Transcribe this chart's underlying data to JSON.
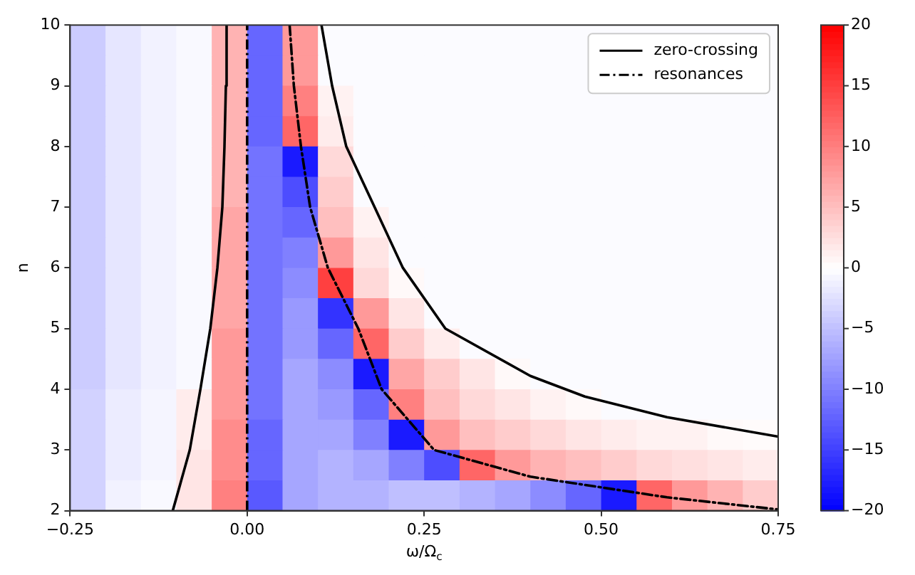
{
  "chart_data": {
    "type": "heatmap",
    "xlabel": "ω/Ω$_{c}$",
    "ylabel": "n",
    "x": [
      -0.225,
      -0.175,
      -0.125,
      -0.075,
      -0.025,
      0.025,
      0.075,
      0.125,
      0.175,
      0.225,
      0.275,
      0.325,
      0.375,
      0.425,
      0.475,
      0.525,
      0.575,
      0.625,
      0.675,
      0.725
    ],
    "y": [
      9.75,
      9.25,
      8.75,
      8.25,
      7.75,
      7.25,
      6.75,
      6.25,
      5.75,
      5.25,
      4.75,
      4.25,
      3.75,
      3.25,
      2.75,
      2.25
    ],
    "cells": [
      [
        -4,
        -2,
        -1,
        -0.5,
        6,
        -12,
        8,
        -0.3,
        -0.3,
        -0.3,
        -0.3,
        -0.3,
        -0.3,
        -0.3,
        -0.3,
        -0.3,
        -0.3,
        -0.3,
        -0.3,
        -0.3
      ],
      [
        -4,
        -2,
        -1,
        -0.5,
        6,
        -12,
        8,
        -0.3,
        -0.3,
        -0.3,
        -0.3,
        -0.3,
        -0.3,
        -0.3,
        -0.3,
        -0.3,
        -0.3,
        -0.3,
        -0.3,
        -0.3
      ],
      [
        -4,
        -2,
        -1,
        -0.5,
        6,
        -12,
        10,
        1,
        -0.3,
        -0.3,
        -0.3,
        -0.3,
        -0.3,
        -0.3,
        -0.3,
        -0.3,
        -0.3,
        -0.3,
        -0.3,
        -0.3
      ],
      [
        -4,
        -2,
        -1,
        -0.5,
        6,
        -12,
        12,
        1.5,
        -0.3,
        -0.3,
        -0.3,
        -0.3,
        -0.3,
        -0.3,
        -0.3,
        -0.3,
        -0.3,
        -0.3,
        -0.3,
        -0.3
      ],
      [
        -4,
        -2,
        -1,
        -0.5,
        6,
        -11,
        -18,
        3,
        -0.3,
        -0.3,
        -0.3,
        -0.3,
        -0.3,
        -0.3,
        -0.3,
        -0.3,
        -0.3,
        -0.3,
        -0.3,
        -0.3
      ],
      [
        -4,
        -2,
        -1,
        -0.5,
        6,
        -11,
        -14,
        4,
        -0.3,
        -0.3,
        -0.3,
        -0.3,
        -0.3,
        -0.3,
        -0.3,
        -0.3,
        -0.3,
        -0.3,
        -0.3,
        -0.3
      ],
      [
        -4,
        -2,
        -1,
        -0.5,
        7,
        -11,
        -12,
        5,
        1,
        -0.3,
        -0.3,
        -0.3,
        -0.3,
        -0.3,
        -0.3,
        -0.3,
        -0.3,
        -0.3,
        -0.3,
        -0.3
      ],
      [
        -4,
        -2,
        -1,
        -0.5,
        7,
        -11,
        -10,
        8,
        2,
        -0.3,
        -0.3,
        -0.3,
        -0.3,
        -0.3,
        -0.3,
        -0.3,
        -0.3,
        -0.3,
        -0.3,
        -0.3
      ],
      [
        -4,
        -2,
        -1,
        -0.5,
        7,
        -11,
        -9,
        15,
        3,
        0.5,
        -0.3,
        -0.3,
        -0.3,
        -0.3,
        -0.3,
        -0.3,
        -0.3,
        -0.3,
        -0.3,
        -0.3
      ],
      [
        -4,
        -2,
        -1,
        -0.5,
        7,
        -11,
        -8,
        -16,
        8,
        2,
        -0.3,
        -0.3,
        -0.3,
        -0.3,
        -0.3,
        -0.3,
        -0.3,
        -0.3,
        -0.3,
        -0.3
      ],
      [
        -4,
        -2,
        -1,
        -0.5,
        8,
        -11,
        -8,
        -12,
        12,
        4,
        1.5,
        -0.3,
        -0.3,
        -0.3,
        -0.3,
        -0.3,
        -0.3,
        -0.3,
        -0.3,
        -0.3
      ],
      [
        -4,
        -2,
        -1,
        -0.5,
        8,
        -11,
        -7,
        -9,
        -18,
        7,
        4,
        2,
        0.5,
        -0.3,
        -0.3,
        -0.3,
        -0.3,
        -0.3,
        -0.3,
        -0.3
      ],
      [
        -3.5,
        -1.5,
        -0.8,
        1.5,
        8,
        -11,
        -7,
        -8,
        -12,
        10,
        5,
        3,
        2,
        1,
        0.5,
        -0.3,
        -0.3,
        -0.3,
        -0.3,
        -0.3
      ],
      [
        -3.5,
        -1.5,
        -0.8,
        1.5,
        9,
        -12,
        -7,
        -7,
        -10,
        -18,
        8,
        5,
        4,
        3,
        2,
        1.5,
        1,
        1,
        0.5,
        0.3
      ],
      [
        -3.5,
        -1.5,
        -0.8,
        2,
        9,
        -12,
        -7,
        -6,
        -7,
        -10,
        -14,
        12,
        8,
        6,
        5,
        4,
        3,
        2.5,
        2,
        1.5
      ],
      [
        -3.5,
        -1,
        -0.5,
        2,
        10,
        -13,
        -7,
        -6,
        -6,
        -5,
        -5,
        -6,
        -7,
        -9,
        -12,
        -18,
        12,
        8,
        6,
        4
      ]
    ],
    "clim": [
      -20,
      20
    ],
    "cticks": [
      {
        "value": -20,
        "label": "−20"
      },
      {
        "value": -15,
        "label": "−15"
      },
      {
        "value": -10,
        "label": "−10"
      },
      {
        "value": -5,
        "label": "−5"
      },
      0,
      5,
      10,
      15,
      20
    ],
    "xlim": [
      -0.25,
      0.75
    ],
    "xticks": [
      {
        "value": -0.25,
        "label": "−0.25"
      },
      {
        "value": 0,
        "label": "0.00"
      },
      {
        "value": 0.25,
        "label": "0.25"
      },
      {
        "value": 0.5,
        "label": "0.50"
      },
      {
        "value": 0.75,
        "label": "0.75"
      }
    ],
    "ylim": [
      2,
      10
    ],
    "yticks": [
      2,
      3,
      4,
      5,
      6,
      7,
      8,
      9,
      10
    ],
    "legend": "top right",
    "series": [
      {
        "type": "line",
        "name": "zero-crossing",
        "color": "#000000",
        "line_style": "solid",
        "x": [
          -0.105,
          -0.081,
          -0.066,
          -0.052,
          -0.042,
          -0.035,
          -0.032,
          -0.03,
          -0.029,
          0,
          0.105,
          0.12,
          0.14,
          0.18,
          0.22,
          0.28,
          0.4,
          0.477,
          0.593,
          0.75
        ],
        "values": [
          2,
          3,
          4,
          5,
          6,
          7,
          8,
          9,
          10,
          null,
          10,
          9,
          8,
          7,
          6,
          5,
          4.22,
          3.88,
          3.54,
          3.22
        ]
      },
      {
        "type": "line",
        "name": "resonances",
        "color": "#000000",
        "line_style": "dashed",
        "x": [
          0.06,
          0.066,
          0.076,
          0.089,
          0.114,
          0.157,
          0.19,
          0.264,
          0.4,
          0.593,
          0.75
        ],
        "values": [
          10,
          9,
          8,
          7,
          6,
          5,
          4,
          3,
          2.56,
          2.22,
          2.02
        ]
      }
    ],
    "ref_lines": [
      {
        "axis": "x",
        "value": 0,
        "color": "#000000",
        "line_style": "dashed"
      }
    ]
  }
}
